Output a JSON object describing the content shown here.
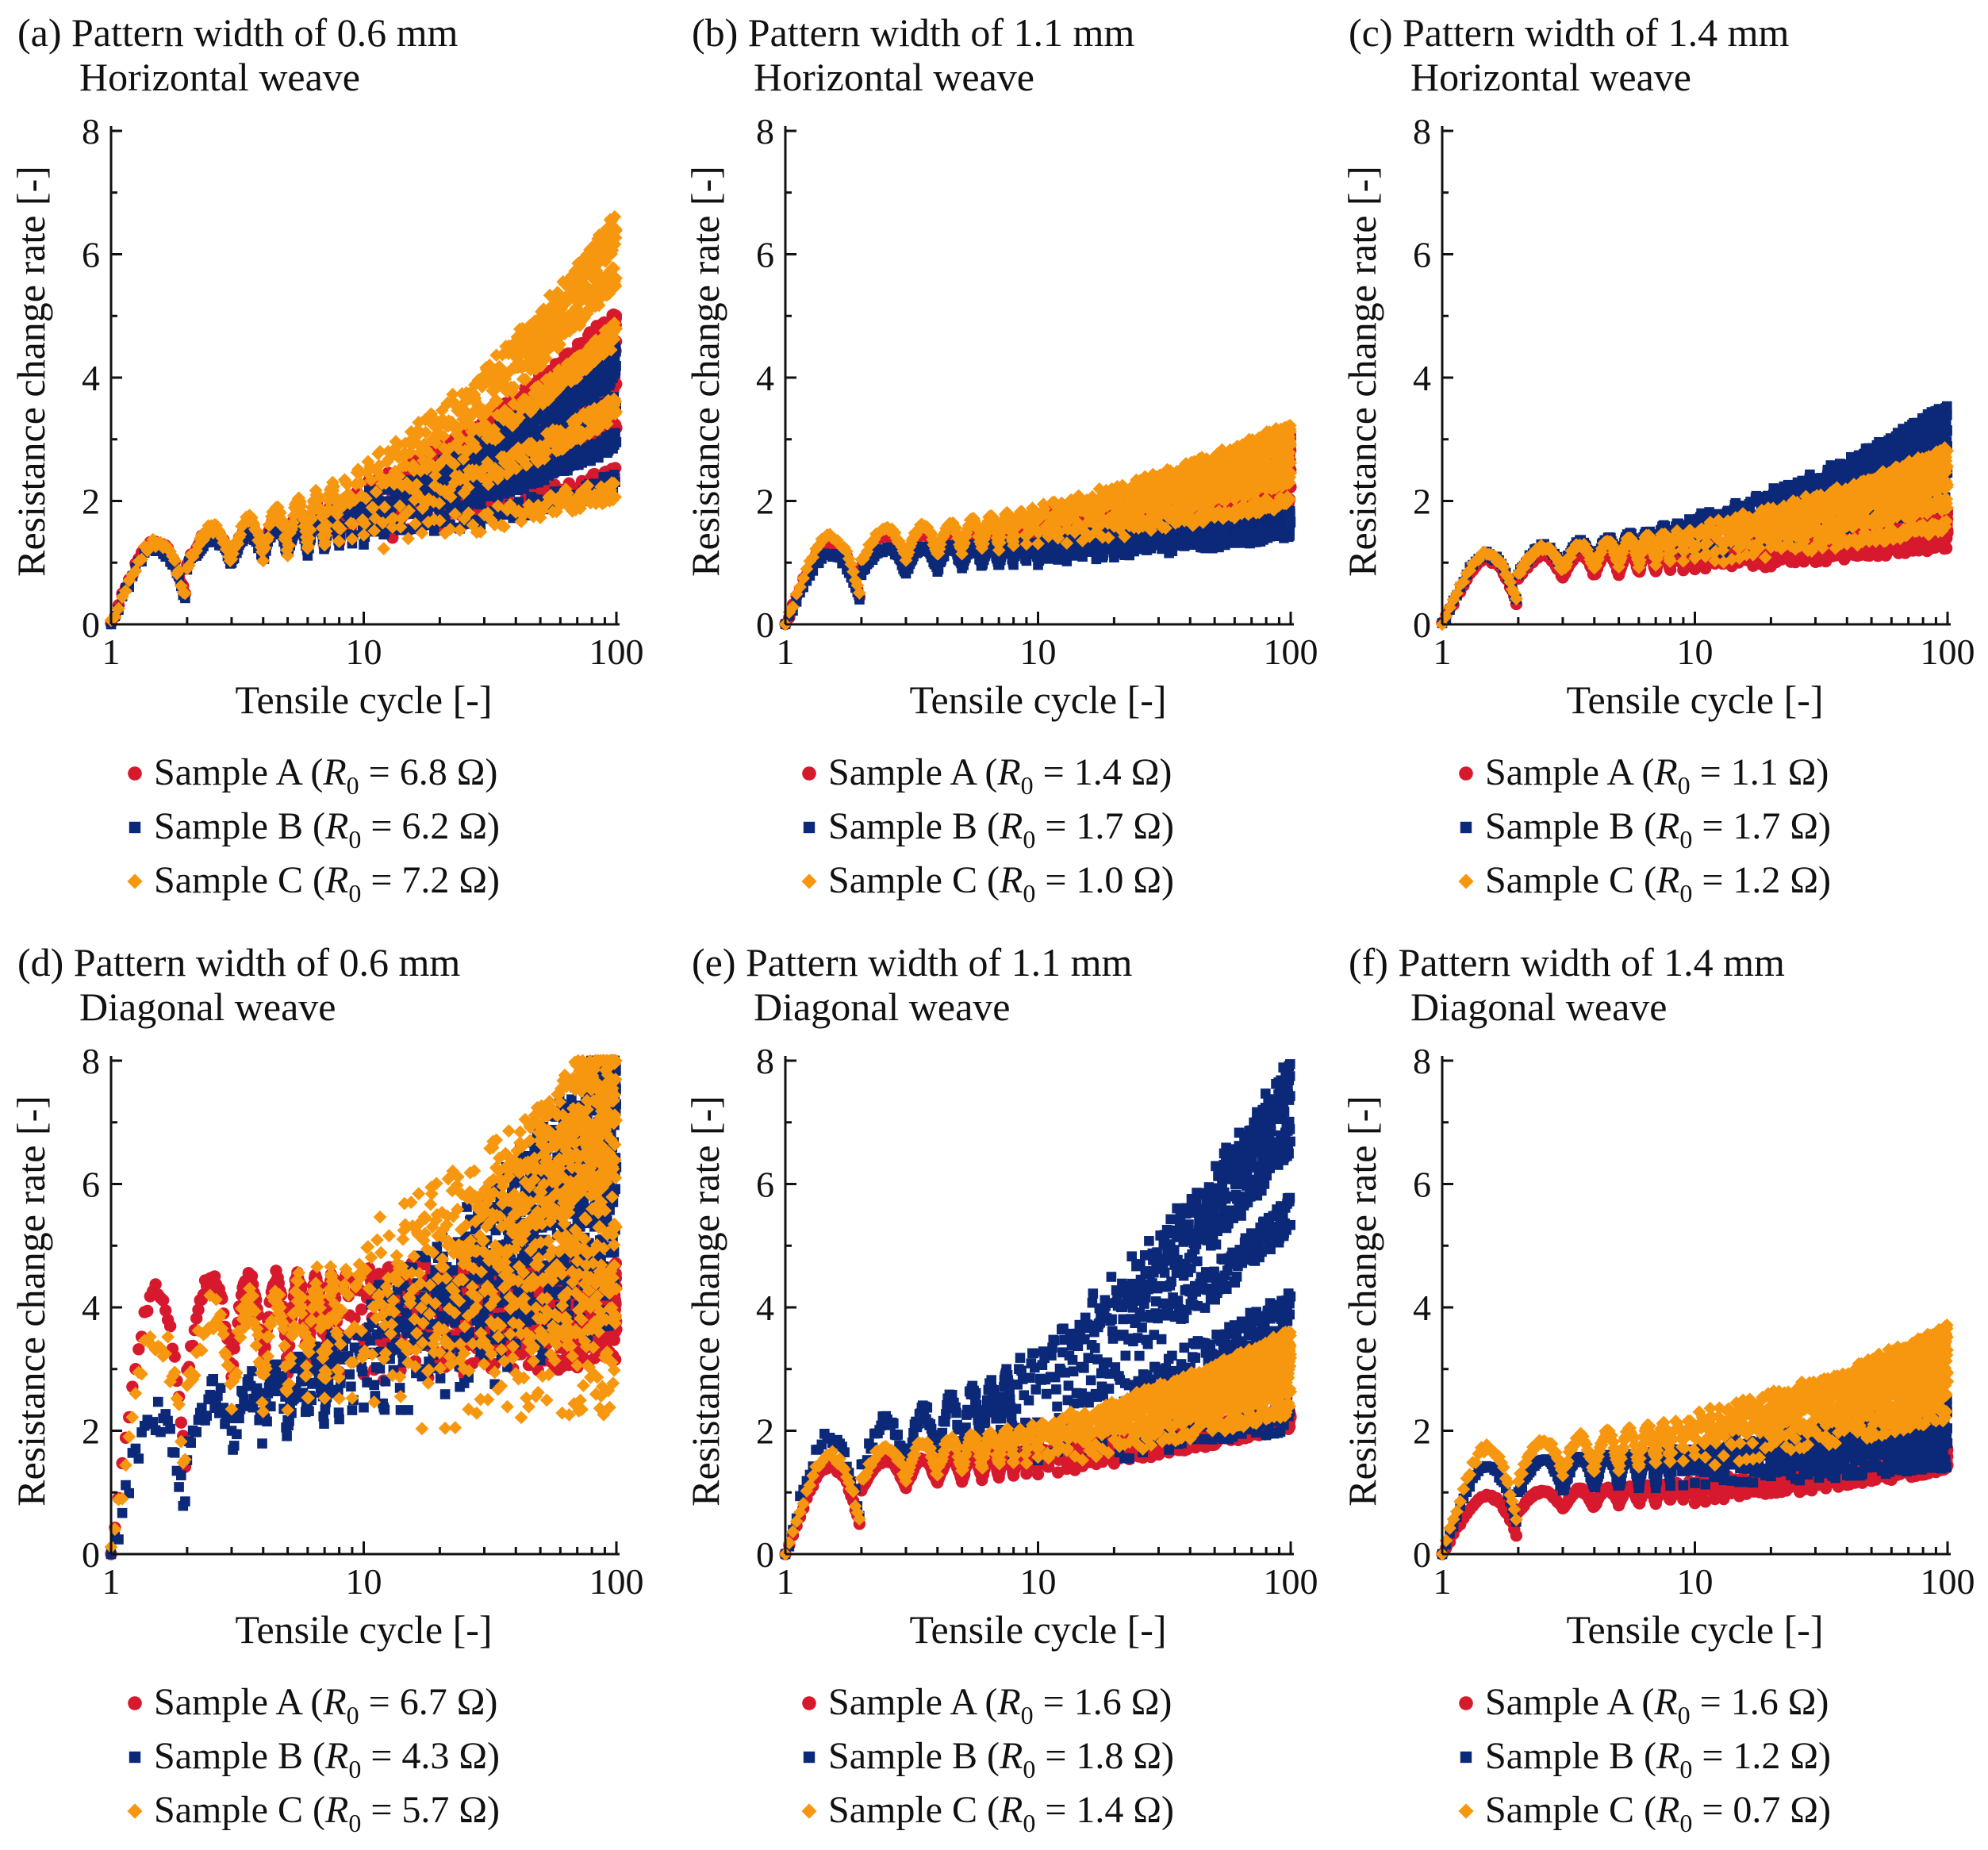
{
  "colors": {
    "sample_a": "#d7192e",
    "sample_b": "#0c2878",
    "sample_c": "#f7970f",
    "axis": "#111111"
  },
  "chart_data": [
    {
      "panel": "a",
      "type": "scatter",
      "title_line1": "(a) Pattern width of 0.6 mm",
      "title_line2": "Horizontal weave",
      "xlabel": "Tensile cycle [-]",
      "ylabel": "Resistance change rate [-]",
      "xscale": "log",
      "xlim": [
        1,
        100
      ],
      "ylim": [
        0,
        8
      ],
      "xticks": [
        "1",
        "10",
        "100"
      ],
      "yticks": [
        "0",
        "2",
        "4",
        "6",
        "8"
      ],
      "series": [
        {
          "name": "Sample A",
          "r0": "6.8 Ω",
          "marker": "circle",
          "color": "#d7192e",
          "peak1": 1.4,
          "upper100": 5.0,
          "lower100": 2.4,
          "spread": 0.3
        },
        {
          "name": "Sample B",
          "r0": "6.2 Ω",
          "marker": "square",
          "color": "#0c2878",
          "peak1": 1.3,
          "upper100": 4.5,
          "lower100": 2.3,
          "spread": 0.3
        },
        {
          "name": "Sample C",
          "r0": "7.2 Ω",
          "marker": "diamond",
          "color": "#f7970f",
          "peak1": 1.4,
          "upper100": 6.5,
          "lower100": 2.2,
          "spread": 0.4
        }
      ]
    },
    {
      "panel": "b",
      "type": "scatter",
      "title_line1": "(b) Pattern width of 1.1 mm",
      "title_line2": "Horizontal weave",
      "xlabel": "Tensile cycle [-]",
      "ylabel": "Resistance change rate [-]",
      "xscale": "log",
      "xlim": [
        1,
        100
      ],
      "ylim": [
        0,
        8
      ],
      "xticks": [
        "1",
        "10",
        "100"
      ],
      "yticks": [
        "0",
        "2",
        "4",
        "6",
        "8"
      ],
      "series": [
        {
          "name": "Sample A",
          "r0": "1.4 Ω",
          "marker": "circle",
          "color": "#d7192e",
          "peak1": 1.4,
          "upper100": 3.0,
          "lower100": 2.0,
          "spread": 0.2
        },
        {
          "name": "Sample B",
          "r0": "1.7 Ω",
          "marker": "square",
          "color": "#0c2878",
          "peak1": 1.2,
          "upper100": 1.8,
          "lower100": 1.5,
          "spread": 0.2
        },
        {
          "name": "Sample C",
          "r0": "1.0 Ω",
          "marker": "diamond",
          "color": "#f7970f",
          "peak1": 1.5,
          "upper100": 3.2,
          "lower100": 2.0,
          "spread": 0.2
        }
      ]
    },
    {
      "panel": "c",
      "type": "scatter",
      "title_line1": "(c) Pattern width of 1.4 mm",
      "title_line2": "Horizontal weave",
      "xlabel": "Tensile cycle [-]",
      "ylabel": "Resistance change rate [-]",
      "xscale": "log",
      "xlim": [
        1,
        100
      ],
      "ylim": [
        0,
        8
      ],
      "xticks": [
        "1",
        "10",
        "100"
      ],
      "yticks": [
        "0",
        "2",
        "4",
        "6",
        "8"
      ],
      "series": [
        {
          "name": "Sample A",
          "r0": "1.1 Ω",
          "marker": "circle",
          "color": "#d7192e",
          "peak1": 1.1,
          "upper100": 1.8,
          "lower100": 1.3,
          "spread": 0.15
        },
        {
          "name": "Sample B",
          "r0": "1.7 Ω",
          "marker": "square",
          "color": "#0c2878",
          "peak1": 1.2,
          "upper100": 3.5,
          "lower100": 2.0,
          "spread": 0.2
        },
        {
          "name": "Sample C",
          "r0": "1.2 Ω",
          "marker": "diamond",
          "color": "#f7970f",
          "peak1": 1.2,
          "upper100": 2.8,
          "lower100": 1.6,
          "spread": 0.2
        }
      ]
    },
    {
      "panel": "d",
      "type": "scatter",
      "title_line1": "(d) Pattern width of 0.6 mm",
      "title_line2": "Diagonal weave",
      "xlabel": "Tensile cycle [-]",
      "ylabel": "Resistance change rate [-]",
      "xscale": "log",
      "xlim": [
        1,
        100
      ],
      "ylim": [
        0,
        8
      ],
      "xticks": [
        "1",
        "10",
        "100"
      ],
      "yticks": [
        "0",
        "2",
        "4",
        "6",
        "8"
      ],
      "series": [
        {
          "name": "Sample A",
          "r0": "6.7 Ω",
          "marker": "circle",
          "color": "#d7192e",
          "peak1": 4.5,
          "upper100": 4.5,
          "lower100": 3.3,
          "spread": 0.5
        },
        {
          "name": "Sample B",
          "r0": "4.3 Ω",
          "marker": "square",
          "color": "#0c2878",
          "peak1": 2.4,
          "upper100": 8.0,
          "lower100": 4.5,
          "spread": 1.5
        },
        {
          "name": "Sample C",
          "r0": "5.7 Ω",
          "marker": "diamond",
          "color": "#f7970f",
          "peak1": 3.8,
          "upper100": 8.0,
          "lower100": 3.0,
          "spread": 1.5
        }
      ]
    },
    {
      "panel": "e",
      "type": "scatter",
      "title_line1": "(e) Pattern width of 1.1 mm",
      "title_line2": "Diagonal weave",
      "xlabel": "Tensile cycle [-]",
      "ylabel": "Resistance change rate [-]",
      "xscale": "log",
      "xlim": [
        1,
        100
      ],
      "ylim": [
        0,
        8
      ],
      "xticks": [
        "1",
        "10",
        "100"
      ],
      "yticks": [
        "0",
        "2",
        "4",
        "6",
        "8"
      ],
      "series": [
        {
          "name": "Sample A",
          "r0": "1.6 Ω",
          "marker": "circle",
          "color": "#d7192e",
          "peak1": 1.5,
          "upper100": 2.3,
          "lower100": 2.1,
          "spread": 0.15
        },
        {
          "name": "Sample B",
          "r0": "1.8 Ω",
          "marker": "square",
          "color": "#0c2878",
          "peak1": 2.0,
          "upper100": 7.8,
          "lower100": 2.3,
          "spread": 0.6
        },
        {
          "name": "Sample C",
          "r0": "1.4 Ω",
          "marker": "diamond",
          "color": "#f7970f",
          "peak1": 1.7,
          "upper100": 3.5,
          "lower100": 2.4,
          "spread": 0.3
        }
      ]
    },
    {
      "panel": "f",
      "type": "scatter",
      "title_line1": "(f) Pattern width of 1.4 mm",
      "title_line2": "Diagonal weave",
      "xlabel": "Tensile cycle [-]",
      "ylabel": "Resistance change rate [-]",
      "xscale": "log",
      "xlim": [
        1,
        100
      ],
      "ylim": [
        0,
        8
      ],
      "xticks": [
        "1",
        "10",
        "100"
      ],
      "yticks": [
        "0",
        "2",
        "4",
        "6",
        "8"
      ],
      "series": [
        {
          "name": "Sample A",
          "r0": "1.6 Ω",
          "marker": "circle",
          "color": "#d7192e",
          "peak1": 1.0,
          "upper100": 1.7,
          "lower100": 1.4,
          "spread": 0.15
        },
        {
          "name": "Sample B",
          "r0": "1.2 Ω",
          "marker": "square",
          "color": "#0c2878",
          "peak1": 1.5,
          "upper100": 2.5,
          "lower100": 1.5,
          "spread": 0.2
        },
        {
          "name": "Sample C",
          "r0": "0.7 Ω",
          "marker": "diamond",
          "color": "#f7970f",
          "peak1": 1.8,
          "upper100": 3.6,
          "lower100": 2.3,
          "spread": 0.3
        }
      ]
    }
  ]
}
